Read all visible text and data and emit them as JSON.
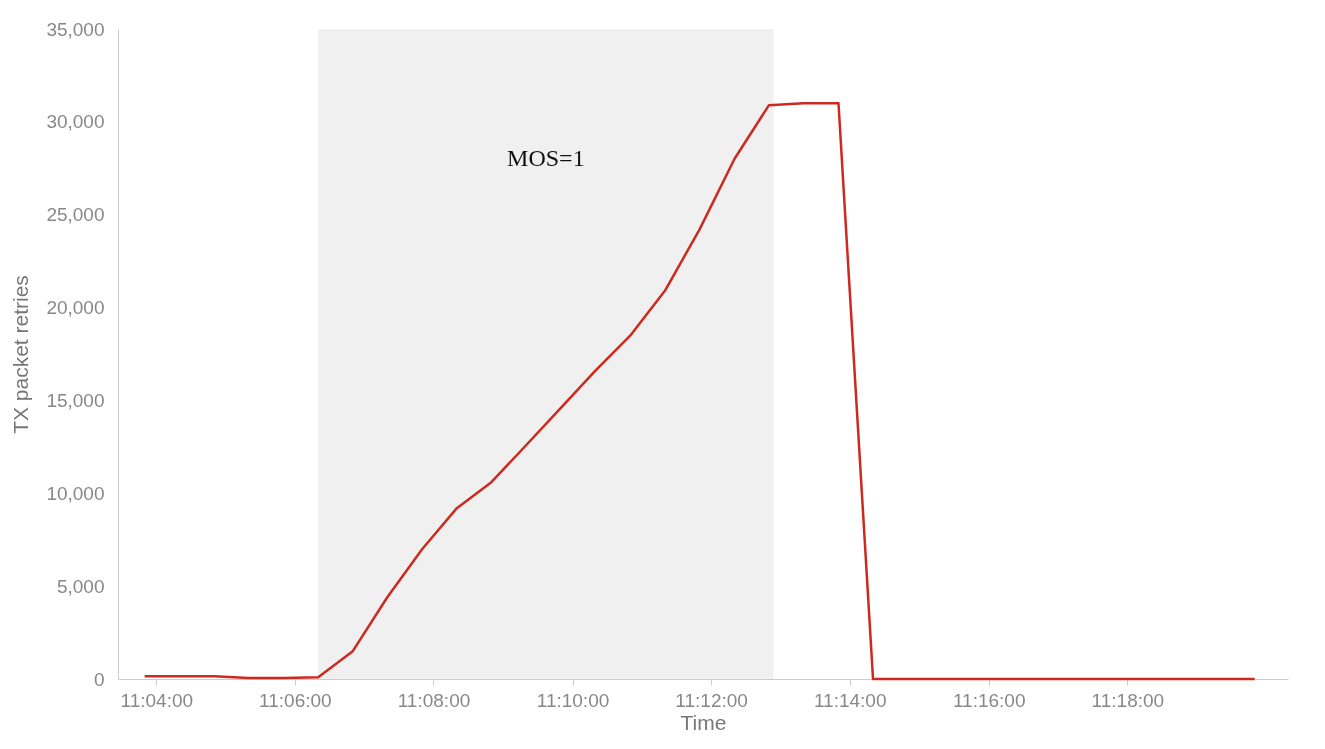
{
  "chart_data": {
    "type": "line",
    "xlabel": "Time",
    "ylabel": "TX packet retries",
    "x": [
      11.0639,
      11.0722,
      11.0806,
      11.0889,
      11.0972,
      11.1056,
      11.1139,
      11.1222,
      11.1306,
      11.1389,
      11.1472,
      11.1556,
      11.1639,
      11.1722,
      11.1806,
      11.1889,
      11.1972,
      11.2056,
      11.2139,
      11.2222,
      11.2306,
      11.2389,
      11.2722,
      11.3056,
      11.3306
    ],
    "series": [
      {
        "color": "#cc2a1e",
        "values": [
          150,
          150,
          150,
          50,
          50,
          100,
          1500,
          4400,
          7000,
          9200,
          10600,
          12600,
          14600,
          16600,
          18500,
          20900,
          24200,
          28000,
          30900,
          31000,
          31000,
          0,
          0,
          0,
          0
        ]
      }
    ],
    "xlim": [
      11.0575,
      11.3386
    ],
    "xticks": [
      {
        "value": 11.0667,
        "label": "11:04:00"
      },
      {
        "value": 11.1,
        "label": "11:06:00"
      },
      {
        "value": 11.1333,
        "label": "11:08:00"
      },
      {
        "value": 11.1667,
        "label": "11:10:00"
      },
      {
        "value": 11.2,
        "label": "11:12:00"
      },
      {
        "value": 11.2333,
        "label": "11:14:00"
      },
      {
        "value": 11.2667,
        "label": "11:16:00"
      },
      {
        "value": 11.3,
        "label": "11:18:00"
      }
    ],
    "ylim": [
      0,
      35000
    ],
    "yticks": [
      0,
      {
        "value": 5000,
        "label": "5,000"
      },
      {
        "value": 10000,
        "label": "10,000"
      },
      {
        "value": 15000,
        "label": "15,000"
      },
      {
        "value": 20000,
        "label": "20,000"
      },
      {
        "value": 25000,
        "label": "25,000"
      },
      {
        "value": 30000,
        "label": "30,000"
      },
      {
        "value": 35000,
        "label": "35,000"
      }
    ],
    "bands": [
      {
        "axis": "x",
        "from": 11.1056,
        "to": 11.215,
        "label": "MOS=1",
        "color": "#f0f0f0"
      }
    ],
    "grid": false,
    "marker": "none",
    "line_style": "solid"
  }
}
